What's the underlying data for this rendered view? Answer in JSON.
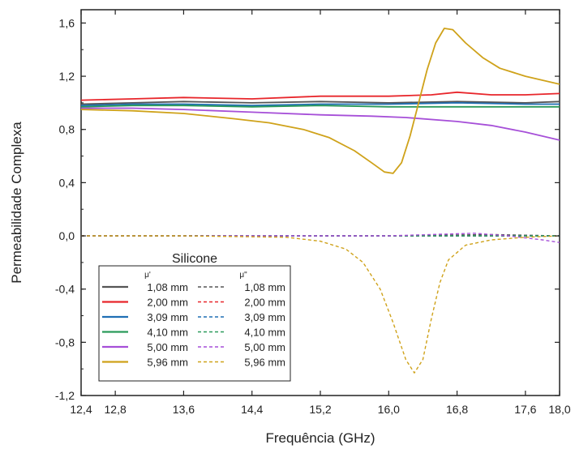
{
  "chart_data": {
    "type": "line",
    "xlabel": "Frequência (GHz)",
    "ylabel": "Permeabilidade Complexa",
    "xlim": [
      12.4,
      18.0
    ],
    "ylim": [
      -1.2,
      1.7
    ],
    "xticks": [
      12.4,
      12.8,
      13.6,
      14.4,
      15.2,
      16.0,
      16.8,
      17.6,
      18.0
    ],
    "xtick_labels": [
      "12,4",
      "12,8",
      "13,6",
      "14,4",
      "15,2",
      "16,0",
      "16,8",
      "17,6",
      "18,0"
    ],
    "yticks": [
      -1.2,
      -0.8,
      -0.4,
      0.0,
      0.4,
      0.8,
      1.2,
      1.6
    ],
    "ytick_labels": [
      "-1,2",
      "-0,8",
      "-0,4",
      "0,0",
      "0,4",
      "0,8",
      "1,2",
      "1,6"
    ],
    "grid": false,
    "legend": {
      "placement": "bottom-left",
      "title": "Silicone",
      "col1_header": "μ'",
      "col2_header": "μ\"",
      "col1_entries": [
        "1,08 mm",
        "2,00 mm",
        "3,09 mm",
        "4,10 mm",
        "5,00 mm",
        "5,96 mm"
      ],
      "col2_entries": [
        "1,08 mm",
        "2,00 mm",
        "3,09 mm",
        "4,10 mm",
        "5,00 mm",
        "5,96 mm"
      ]
    },
    "series": [
      {
        "name": "1,08 mm",
        "component": "real",
        "style": "solid",
        "color": "#555555",
        "x": [
          12.4,
          13.0,
          13.6,
          14.4,
          15.2,
          16.0,
          16.8,
          17.6,
          18.0
        ],
        "y": [
          0.99,
          1.0,
          1.01,
          1.0,
          1.01,
          1.0,
          1.01,
          1.0,
          1.01
        ]
      },
      {
        "name": "2,00 mm",
        "component": "real",
        "style": "solid",
        "color": "#e8262b",
        "x": [
          12.4,
          13.0,
          13.6,
          14.4,
          15.2,
          16.0,
          16.5,
          16.8,
          17.2,
          17.6,
          18.0
        ],
        "y": [
          1.02,
          1.03,
          1.04,
          1.03,
          1.05,
          1.05,
          1.06,
          1.08,
          1.06,
          1.06,
          1.07
        ]
      },
      {
        "name": "3,09 mm",
        "component": "real",
        "style": "solid",
        "color": "#1f6fb4",
        "x": [
          12.4,
          13.0,
          13.6,
          14.4,
          15.2,
          16.0,
          16.8,
          17.6,
          18.0
        ],
        "y": [
          0.98,
          0.99,
          0.99,
          0.98,
          0.99,
          0.99,
          1.0,
          0.99,
          0.99
        ]
      },
      {
        "name": "4,10 mm",
        "component": "real",
        "style": "solid",
        "color": "#2a9a5a",
        "x": [
          12.4,
          13.0,
          13.6,
          14.4,
          15.2,
          16.0,
          16.8,
          17.6,
          18.0
        ],
        "y": [
          0.97,
          0.98,
          0.98,
          0.97,
          0.98,
          0.97,
          0.97,
          0.97,
          0.97
        ]
      },
      {
        "name": "5,00 mm",
        "component": "real",
        "style": "solid",
        "color": "#a64fd8",
        "x": [
          12.4,
          13.0,
          13.6,
          14.4,
          15.2,
          15.8,
          16.2,
          16.8,
          17.2,
          17.6,
          18.0
        ],
        "y": [
          0.96,
          0.96,
          0.95,
          0.93,
          0.91,
          0.9,
          0.89,
          0.86,
          0.83,
          0.78,
          0.72
        ]
      },
      {
        "name": "5,96 mm",
        "component": "real",
        "style": "solid",
        "color": "#cfa21a",
        "x": [
          12.4,
          13.0,
          13.6,
          14.2,
          14.6,
          15.0,
          15.3,
          15.6,
          15.8,
          15.95,
          16.05,
          16.15,
          16.25,
          16.35,
          16.45,
          16.55,
          16.65,
          16.75,
          16.9,
          17.1,
          17.3,
          17.6,
          18.0
        ],
        "y": [
          0.95,
          0.94,
          0.92,
          0.88,
          0.85,
          0.8,
          0.74,
          0.64,
          0.55,
          0.48,
          0.47,
          0.55,
          0.75,
          1.0,
          1.25,
          1.45,
          1.56,
          1.55,
          1.45,
          1.34,
          1.26,
          1.2,
          1.14
        ]
      },
      {
        "name": "1,08 mm",
        "component": "imaginary",
        "style": "dashed",
        "color": "#555555",
        "x": [
          12.4,
          13.6,
          14.8,
          16.0,
          17.2,
          18.0
        ],
        "y": [
          0.0,
          0.0,
          0.0,
          0.0,
          0.01,
          0.0
        ]
      },
      {
        "name": "2,00 mm",
        "component": "imaginary",
        "style": "dashed",
        "color": "#e8262b",
        "x": [
          12.4,
          13.6,
          14.8,
          16.0,
          17.2,
          18.0
        ],
        "y": [
          0.0,
          0.0,
          0.0,
          0.0,
          0.0,
          0.0
        ]
      },
      {
        "name": "3,09 mm",
        "component": "imaginary",
        "style": "dashed",
        "color": "#1f6fb4",
        "x": [
          12.4,
          13.6,
          14.8,
          16.0,
          17.2,
          18.0
        ],
        "y": [
          0.0,
          0.0,
          0.0,
          0.0,
          0.0,
          0.0
        ]
      },
      {
        "name": "4,10 mm",
        "component": "imaginary",
        "style": "dashed",
        "color": "#2a9a5a",
        "x": [
          12.4,
          13.6,
          14.8,
          16.0,
          17.2,
          18.0
        ],
        "y": [
          0.0,
          0.0,
          0.0,
          0.0,
          0.0,
          0.0
        ]
      },
      {
        "name": "5,00 mm",
        "component": "imaginary",
        "style": "dashed",
        "color": "#a64fd8",
        "x": [
          12.4,
          13.6,
          14.8,
          16.0,
          17.0,
          17.4,
          17.8,
          18.0
        ],
        "y": [
          0.0,
          0.0,
          0.0,
          0.0,
          0.02,
          0.0,
          -0.03,
          -0.05
        ]
      },
      {
        "name": "5,96 mm",
        "component": "imaginary",
        "style": "dashed",
        "color": "#cfa21a",
        "x": [
          12.4,
          13.6,
          14.8,
          15.2,
          15.5,
          15.7,
          15.9,
          16.05,
          16.2,
          16.3,
          16.4,
          16.5,
          16.6,
          16.7,
          16.9,
          17.2,
          17.6,
          18.0
        ],
        "y": [
          0.0,
          0.0,
          -0.01,
          -0.04,
          -0.1,
          -0.2,
          -0.4,
          -0.65,
          -0.93,
          -1.03,
          -0.93,
          -0.62,
          -0.35,
          -0.18,
          -0.07,
          -0.03,
          -0.01,
          0.0
        ]
      }
    ]
  }
}
